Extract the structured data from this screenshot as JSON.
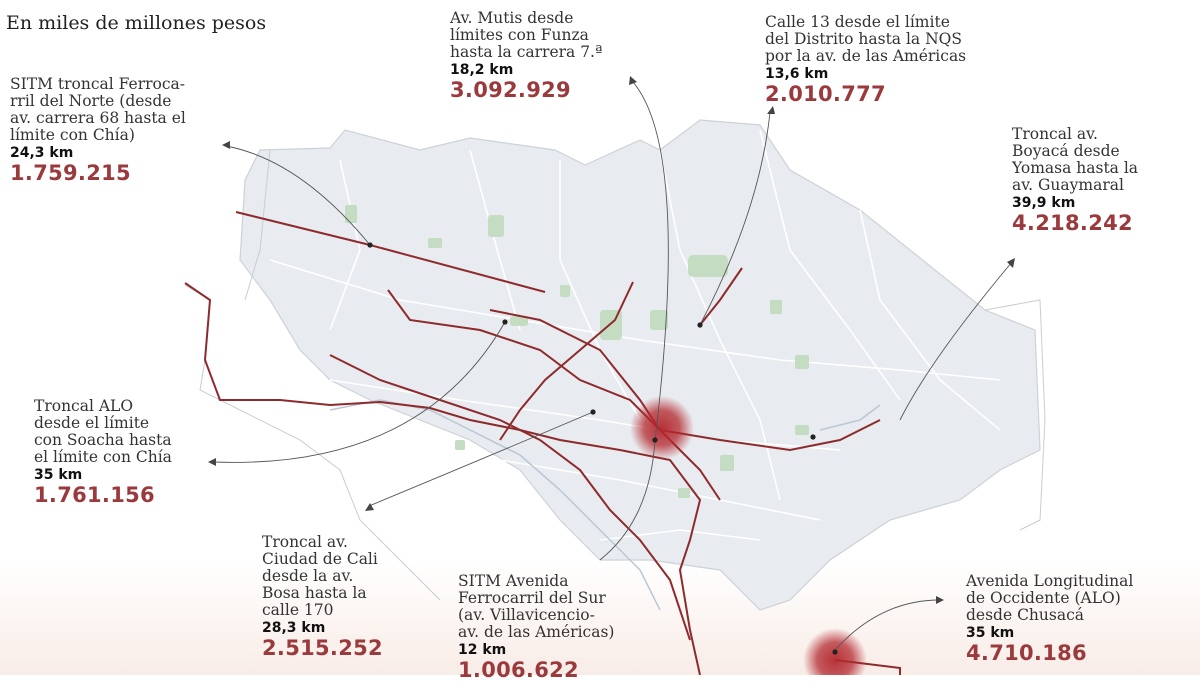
{
  "header": {
    "title": "En miles de millones pesos"
  },
  "annotations": [
    {
      "id": "ferrocarril-norte",
      "desc": "SITM troncal Ferroca-\nrril del Norte (desde\nav. carrera 68 hasta el\nlímite con Chía)",
      "length": "24,3 km",
      "cost": "1.759.215"
    },
    {
      "id": "mutis",
      "desc": "Av. Mutis desde\nlímites con Funza\nhasta la carrera 7.ª",
      "length": "18,2 km",
      "cost": "3.092.929"
    },
    {
      "id": "calle13",
      "desc": "Calle 13 desde el límite\ndel Distrito hasta la NQS\npor la av. de las Américas",
      "length": "13,6 km",
      "cost": "2.010.777"
    },
    {
      "id": "boyaca",
      "desc": "Troncal av.\nBoyacá desde\nYomasa hasta la\nav. Guaymaral",
      "length": "39,9 km",
      "cost": "4.218.242"
    },
    {
      "id": "alo",
      "desc": "Troncal ALO\ndesde el límite\ncon Soacha hasta\nel límite con Chía",
      "length": "35 km",
      "cost": "1.761.156"
    },
    {
      "id": "ciudad-cali",
      "desc": "Troncal av.\nCiudad de Cali\ndesde la av.\nBosa hasta la\ncalle 170",
      "length": "28,3 km",
      "cost": "2.515.252"
    },
    {
      "id": "ferrocarril-sur",
      "desc": "SITM Avenida\nFerrocarril del Sur\n(av. Villavicencio-\nav. de las Américas)",
      "length": "12 km",
      "cost": "1.006.622"
    },
    {
      "id": "alo-chusaca",
      "desc": "Avenida Longitudinal\nde Occidente (ALO)\ndesde Chusacá",
      "length": "35 km",
      "cost": "4.710.186"
    }
  ],
  "colors": {
    "route": "#8e2a2c",
    "accent": "#9b3a3c",
    "district": "#e7eaee",
    "park": "#bfd9be",
    "hotspot": "#b3282e"
  }
}
